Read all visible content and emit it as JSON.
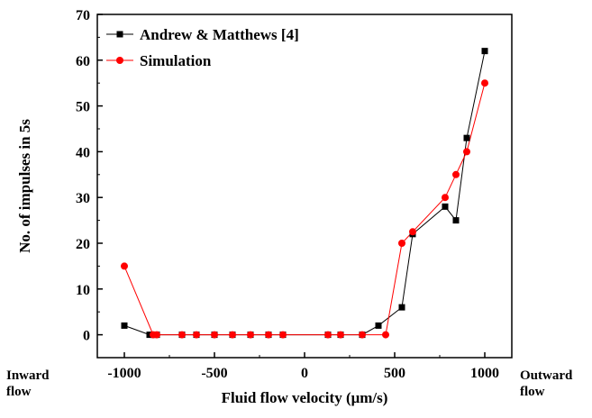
{
  "chart_data": {
    "type": "line",
    "title": "",
    "xlabel": "Fluid flow velocity (μm/s)",
    "ylabel": "No. of impulses in 5s",
    "xlim": [
      -1150,
      1150
    ],
    "ylim": [
      -5,
      70
    ],
    "xticks": [
      -1000,
      -500,
      0,
      500,
      1000
    ],
    "xtick_labels": [
      "-1000",
      "-500",
      "0",
      "500",
      "1000"
    ],
    "yticks": [
      0,
      10,
      20,
      30,
      40,
      50,
      60,
      70
    ],
    "ytick_labels": [
      "0",
      "10",
      "20",
      "30",
      "40",
      "50",
      "60",
      "70"
    ],
    "x_left_annotation": [
      "Inward",
      "flow"
    ],
    "x_right_annotation": [
      "Outward",
      "flow"
    ],
    "legend_position": "top-left",
    "grid": false,
    "series": [
      {
        "name": "Andrew & Matthews [4]",
        "marker": "square",
        "color": "#000000",
        "x": [
          -1000,
          -860,
          -840,
          -820,
          -680,
          -600,
          -500,
          -400,
          -300,
          -200,
          -120,
          130,
          200,
          320,
          410,
          540,
          600,
          780,
          840,
          900,
          1000
        ],
        "y": [
          2,
          0,
          0,
          0,
          0,
          0,
          0,
          0,
          0,
          0,
          0,
          0,
          0,
          0,
          2,
          6,
          22,
          28,
          25,
          43,
          62
        ]
      },
      {
        "name": "Simulation",
        "marker": "circle",
        "color": "#ff0000",
        "x": [
          -1000,
          -840,
          -820,
          -680,
          -600,
          -500,
          -400,
          -300,
          -200,
          -120,
          130,
          200,
          320,
          450,
          540,
          600,
          780,
          840,
          900,
          1000
        ],
        "y": [
          15,
          0,
          0,
          0,
          0,
          0,
          0,
          0,
          0,
          0,
          0,
          0,
          0,
          0,
          20,
          22.5,
          30,
          35,
          40,
          55
        ]
      }
    ]
  }
}
